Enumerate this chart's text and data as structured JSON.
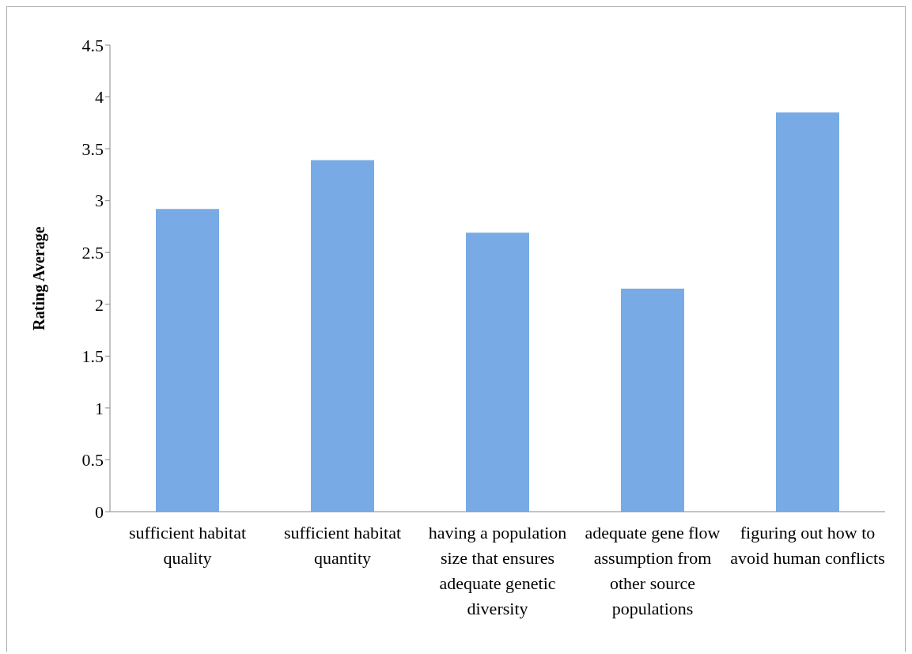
{
  "chart_data": {
    "type": "bar",
    "ylabel": "Rating Average",
    "categories": [
      "sufficient habitat quality",
      "sufficient habitat quantity",
      "having a population size that ensures adequate genetic diversity",
      "adequate gene flow assumption from other source populations",
      "figuring out how to avoid human conflicts"
    ],
    "values": [
      2.92,
      3.39,
      2.69,
      2.15,
      3.85
    ],
    "color": "#78aae6",
    "ylim": [
      0,
      4.5
    ],
    "yticks": [
      0,
      0.5,
      1,
      1.5,
      2,
      2.5,
      3,
      3.5,
      4,
      4.5
    ],
    "grid": false,
    "legend": false
  }
}
